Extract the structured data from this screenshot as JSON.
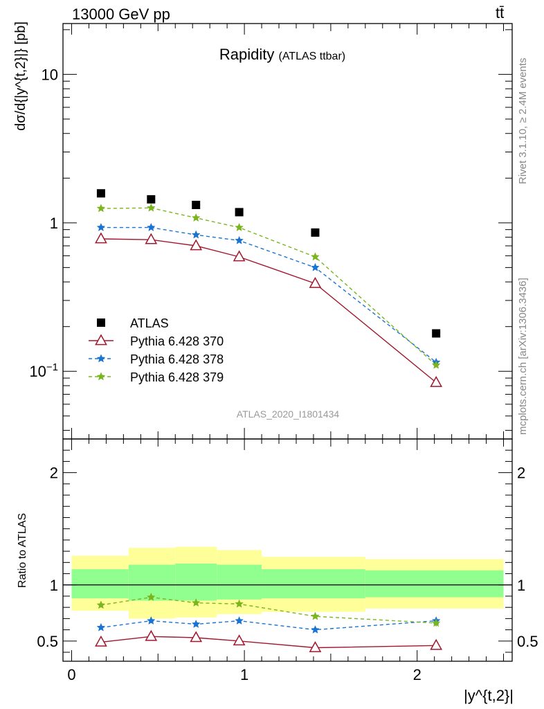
{
  "header": {
    "energy_label": "13000 GeV pp",
    "process_label": "tt̄"
  },
  "side": {
    "rivet_label": "Rivet 3.1.10, ≥ 2.4M events",
    "source_label": "mcplots.cern.ch [arXiv:1306.3436]"
  },
  "chart_data": [
    {
      "type": "line",
      "title": "Rapidity",
      "subtitle": "(ATLAS ttbar)",
      "watermark": "ATLAS_2020_I1801434",
      "ylabel": "dσ/d{|y^{t,2}|} [pb]",
      "yscale": "log",
      "ylim": [
        0.035,
        22
      ],
      "xlim": [
        -0.05,
        2.55
      ],
      "ytick_labels": [
        "10^-1",
        "1",
        "10"
      ],
      "grid": false,
      "legend_position": "lower-left",
      "x": [
        0.17,
        0.46,
        0.72,
        0.97,
        1.41,
        2.11
      ],
      "bins": [
        [
          0.0,
          0.33
        ],
        [
          0.33,
          0.6
        ],
        [
          0.6,
          0.84
        ],
        [
          0.84,
          1.1
        ],
        [
          1.1,
          1.7
        ],
        [
          1.7,
          2.5
        ]
      ],
      "series": [
        {
          "name": "ATLAS",
          "marker": "square",
          "color": "#000000",
          "values": [
            1.58,
            1.44,
            1.32,
            1.18,
            0.86,
            0.18
          ]
        },
        {
          "name": "Pythia 6.428 370",
          "marker": "triangle-open",
          "line": "solid",
          "color": "#a0162c",
          "values": [
            0.78,
            0.77,
            0.7,
            0.59,
            0.39,
            0.084
          ]
        },
        {
          "name": "Pythia 6.428 378",
          "marker": "star",
          "line": "dashed",
          "color": "#1873d3",
          "values": [
            0.93,
            0.93,
            0.83,
            0.76,
            0.5,
            0.115
          ]
        },
        {
          "name": "Pythia 6.428 379",
          "marker": "star",
          "line": "dashed",
          "color": "#7ab51d",
          "values": [
            1.25,
            1.26,
            1.08,
            0.93,
            0.59,
            0.11
          ]
        }
      ]
    },
    {
      "type": "line",
      "ylabel": "Ratio to ATLAS",
      "xlabel": "|y^{t,2}|",
      "ylim": [
        0.32,
        2.3
      ],
      "xlim": [
        -0.05,
        2.55
      ],
      "ytick_labels": [
        "0.5",
        "1",
        "2"
      ],
      "xtick_labels": [
        "0",
        "1",
        "2"
      ],
      "x": [
        0.17,
        0.46,
        0.72,
        0.97,
        1.41,
        2.11
      ],
      "bins": [
        [
          0.0,
          0.33
        ],
        [
          0.33,
          0.6
        ],
        [
          0.6,
          0.84
        ],
        [
          0.84,
          1.1
        ],
        [
          1.1,
          1.7
        ],
        [
          1.7,
          2.5
        ]
      ],
      "band_inner": [
        [
          0.88,
          1.14
        ],
        [
          0.86,
          1.18
        ],
        [
          0.86,
          1.19
        ],
        [
          0.87,
          1.18
        ],
        [
          0.88,
          1.14
        ],
        [
          0.89,
          1.13
        ]
      ],
      "band_outer": [
        [
          0.77,
          1.26
        ],
        [
          0.7,
          1.33
        ],
        [
          0.71,
          1.34
        ],
        [
          0.74,
          1.31
        ],
        [
          0.76,
          1.25
        ],
        [
          0.79,
          1.23
        ]
      ],
      "series": [
        {
          "name": "Pythia 6.428 370",
          "color": "#a0162c",
          "values": [
            0.49,
            0.54,
            0.53,
            0.5,
            0.44,
            0.46
          ],
          "errors": [
            0.0,
            0.0,
            0.0,
            0.0,
            0.0,
            0.03
          ]
        },
        {
          "name": "Pythia 6.428 378",
          "color": "#1873d3",
          "values": [
            0.62,
            0.68,
            0.65,
            0.68,
            0.6,
            0.68
          ],
          "errors": [
            0.02,
            0.02,
            0.02,
            0.02,
            0.015,
            0.03
          ]
        },
        {
          "name": "Pythia 6.428 379",
          "color": "#7ab51d",
          "values": [
            0.82,
            0.89,
            0.84,
            0.83,
            0.72,
            0.66
          ],
          "errors": [
            0.02,
            0.02,
            0.02,
            0.02,
            0.015,
            0.03
          ]
        }
      ]
    }
  ],
  "colors": {
    "band_inner": "#90ff90",
    "band_outer": "#ffff99",
    "side_text": "#888888",
    "watermark": "#999999"
  }
}
